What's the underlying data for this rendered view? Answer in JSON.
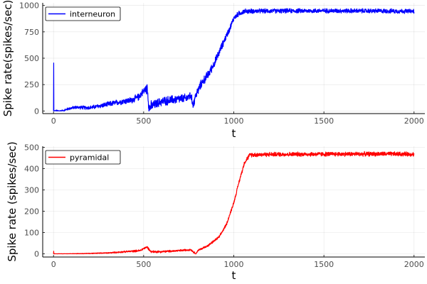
{
  "chart_data": [
    {
      "type": "line",
      "xlabel": "t",
      "ylabel": "Spike rate(spikes/sec)",
      "xlim": [
        -60,
        2060
      ],
      "ylim": [
        -25,
        1025
      ],
      "xticks": [
        0,
        500,
        1000,
        1500,
        2000
      ],
      "yticks": [
        0,
        250,
        500,
        750,
        1000
      ],
      "grid": true,
      "legend_position": "top-left",
      "series": [
        {
          "name": "interneuron",
          "color": "#0000ff",
          "noise": [
            [
              0,
              10
            ],
            [
              500,
              40
            ],
            [
              530,
              70
            ],
            [
              560,
              50
            ],
            [
              780,
              50
            ],
            [
              900,
              45
            ],
            [
              1000,
              30
            ],
            [
              1100,
              25
            ],
            [
              2000,
              25
            ]
          ],
          "points": [
            [
              0,
              0
            ],
            [
              1,
              455
            ],
            [
              2,
              0
            ],
            [
              50,
              0
            ],
            [
              80,
              20
            ],
            [
              120,
              35
            ],
            [
              200,
              30
            ],
            [
              280,
              55
            ],
            [
              380,
              90
            ],
            [
              430,
              100
            ],
            [
              470,
              130
            ],
            [
              500,
              190
            ],
            [
              520,
              215
            ],
            [
              530,
              30
            ],
            [
              560,
              60
            ],
            [
              600,
              90
            ],
            [
              680,
              110
            ],
            [
              740,
              120
            ],
            [
              760,
              150
            ],
            [
              775,
              60
            ],
            [
              790,
              150
            ],
            [
              820,
              260
            ],
            [
              860,
              350
            ],
            [
              900,
              480
            ],
            [
              940,
              640
            ],
            [
              980,
              790
            ],
            [
              1000,
              880
            ],
            [
              1030,
              925
            ],
            [
              1060,
              945
            ],
            [
              1200,
              948
            ],
            [
              1500,
              950
            ],
            [
              1800,
              948
            ],
            [
              2000,
              945
            ]
          ]
        }
      ]
    },
    {
      "type": "line",
      "xlabel": "t",
      "ylabel": "Spike rate (spikes/sec)",
      "xlim": [
        -60,
        2060
      ],
      "ylim": [
        -15,
        505
      ],
      "xticks": [
        0,
        500,
        1000,
        1500,
        2000
      ],
      "yticks": [
        0,
        100,
        200,
        300,
        400,
        500
      ],
      "grid": true,
      "legend_position": "top-left",
      "series": [
        {
          "name": "pyramidal",
          "color": "#ff0000",
          "noise": [
            [
              0,
              1
            ],
            [
              300,
              3
            ],
            [
              500,
              6
            ],
            [
              800,
              5
            ],
            [
              1000,
              8
            ],
            [
              1100,
              12
            ],
            [
              2000,
              12
            ]
          ],
          "points": [
            [
              0,
              0
            ],
            [
              1,
              12
            ],
            [
              2,
              0
            ],
            [
              100,
              0
            ],
            [
              200,
              2
            ],
            [
              300,
              4
            ],
            [
              400,
              10
            ],
            [
              480,
              15
            ],
            [
              500,
              25
            ],
            [
              520,
              32
            ],
            [
              540,
              10
            ],
            [
              600,
              10
            ],
            [
              700,
              15
            ],
            [
              760,
              20
            ],
            [
              790,
              0
            ],
            [
              800,
              15
            ],
            [
              860,
              40
            ],
            [
              920,
              80
            ],
            [
              960,
              140
            ],
            [
              1000,
              240
            ],
            [
              1030,
              340
            ],
            [
              1060,
              430
            ],
            [
              1090,
              465
            ],
            [
              1200,
              467
            ],
            [
              1500,
              468
            ],
            [
              1800,
              469
            ],
            [
              2000,
              468
            ]
          ]
        }
      ]
    }
  ]
}
